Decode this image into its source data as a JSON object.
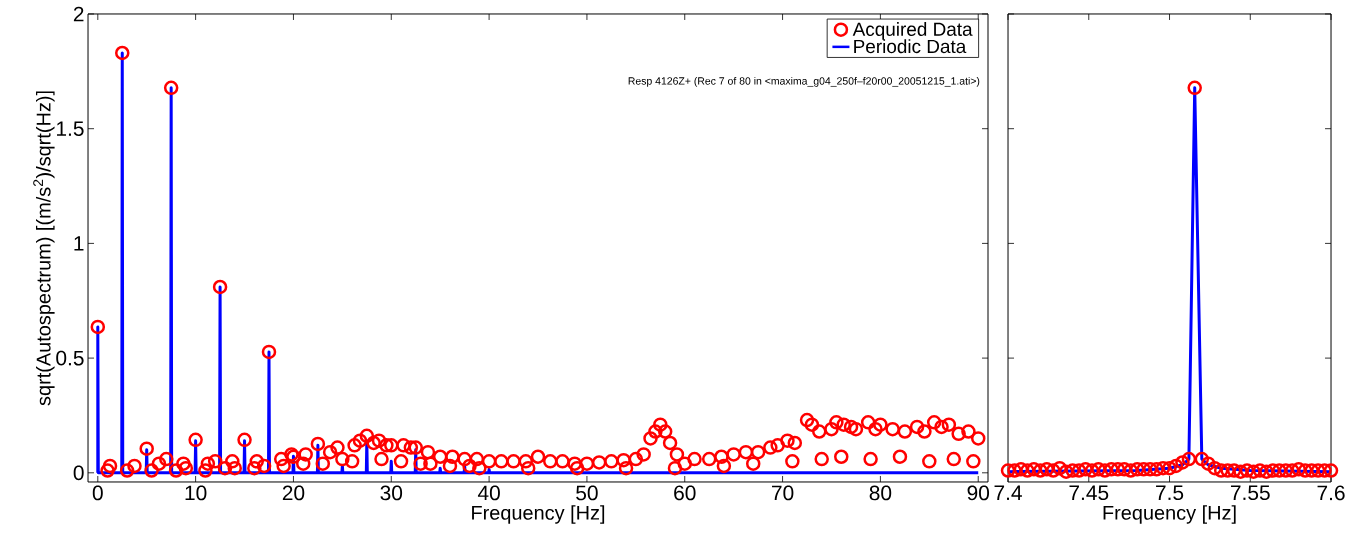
{
  "chart_data": [
    {
      "type": "scatter",
      "xlabel": "Frequency [Hz]",
      "ylabel": "sqrt(Autospectrum) [(m/s$^{2}$)/sqrt(Hz)]",
      "annotations": [
        "Resp 4126Z+ (Rec 7 of 80 in <maxima_g04_250f–f20r00_20051215_1.ati>)"
      ],
      "xlim": [
        -1,
        91
      ],
      "ylim": [
        -0.04,
        2
      ],
      "xticks": [
        0,
        10,
        20,
        30,
        40,
        50,
        60,
        70,
        80,
        90
      ],
      "yticks": [
        0,
        0.5,
        1,
        1.5,
        2
      ],
      "grid": false,
      "legend": "top right",
      "series": [
        {
          "name": "Acquired Data",
          "marker": "circle",
          "color": "#ff0000",
          "x": [
            0,
            2.5,
            5,
            7.5,
            10,
            12.5,
            15,
            17.5,
            20,
            22.5,
            25,
            27.5,
            30,
            32.5,
            35,
            37.5,
            40,
            1.25,
            3.75,
            6.25,
            7.0,
            8.75,
            11.25,
            12.0,
            13.75,
            16.25,
            18.75,
            19.8,
            21.25,
            23.75,
            24.5,
            26.25,
            26.8,
            28.2,
            28.75,
            29.5,
            31.25,
            32.0,
            33.75,
            36.25,
            38.75,
            41.25,
            42.5,
            43.75,
            45,
            46.25,
            47.5,
            48.75,
            50,
            51.25,
            52.5,
            53.75,
            55,
            55.8,
            56.5,
            57.0,
            57.5,
            58.0,
            58.5,
            59.2,
            60,
            61,
            62.5,
            63.75,
            65,
            66.25,
            67.5,
            68.75,
            69.5,
            70.5,
            71.25,
            72.5,
            73.0,
            73.75,
            75,
            75.5,
            76.25,
            77.0,
            77.5,
            78.75,
            79.5,
            80.0,
            81.25,
            82.5,
            83.75,
            84.5,
            85.5,
            86.25,
            87.0,
            88.0,
            89.0,
            90.0,
            1,
            3,
            5.5,
            8,
            9,
            11,
            13,
            14,
            16,
            17,
            19,
            21,
            23,
            26,
            29,
            31,
            33,
            34,
            36,
            38,
            39,
            44,
            49,
            54,
            59,
            64,
            67,
            71,
            74,
            76,
            79,
            82,
            85,
            87.5,
            89.5
          ],
          "values": [
            0.636,
            1.83,
            0.105,
            1.678,
            0.144,
            0.81,
            0.144,
            0.527,
            0.07,
            0.126,
            0.06,
            0.161,
            0.12,
            0.11,
            0.07,
            0.06,
            0.05,
            0.03,
            0.03,
            0.04,
            0.06,
            0.04,
            0.04,
            0.05,
            0.05,
            0.05,
            0.06,
            0.08,
            0.08,
            0.09,
            0.11,
            0.12,
            0.14,
            0.13,
            0.14,
            0.12,
            0.12,
            0.11,
            0.09,
            0.07,
            0.06,
            0.05,
            0.05,
            0.05,
            0.07,
            0.05,
            0.05,
            0.04,
            0.04,
            0.045,
            0.05,
            0.055,
            0.06,
            0.08,
            0.15,
            0.18,
            0.21,
            0.18,
            0.13,
            0.08,
            0.04,
            0.06,
            0.06,
            0.07,
            0.08,
            0.09,
            0.09,
            0.11,
            0.12,
            0.14,
            0.13,
            0.23,
            0.21,
            0.18,
            0.19,
            0.22,
            0.21,
            0.2,
            0.19,
            0.22,
            0.19,
            0.21,
            0.19,
            0.18,
            0.2,
            0.18,
            0.22,
            0.2,
            0.21,
            0.17,
            0.18,
            0.15,
            0.01,
            0.01,
            0.01,
            0.01,
            0.02,
            0.01,
            0.02,
            0.02,
            0.02,
            0.03,
            0.03,
            0.04,
            0.04,
            0.05,
            0.06,
            0.05,
            0.04,
            0.04,
            0.03,
            0.03,
            0.02,
            0.02,
            0.02,
            0.02,
            0.02,
            0.03,
            0.04,
            0.05,
            0.06,
            0.07,
            0.06,
            0.07,
            0.05,
            0.06,
            0.05
          ]
        },
        {
          "name": "Periodic Data",
          "type": "line",
          "marker": "none",
          "line_style": "solid",
          "color": "#0000ff",
          "x": [
            0,
            0,
            0.05,
            2.45,
            2.5,
            2.55,
            4.95,
            5,
            5.05,
            7.45,
            7.5,
            7.55,
            9.95,
            10,
            10.05,
            12.45,
            12.5,
            12.55,
            14.95,
            15,
            15.05,
            17.45,
            17.5,
            17.55,
            19.95,
            20,
            20.05,
            22.45,
            22.5,
            22.55,
            24.95,
            25,
            25.05,
            27.45,
            27.5,
            27.55,
            29.95,
            30,
            30.05,
            32.45,
            32.5,
            32.55,
            34.95,
            35,
            35.05,
            37.45,
            37.5,
            37.55,
            39.95,
            40,
            40.05,
            90
          ],
          "values": [
            0,
            0.636,
            0,
            0,
            1.83,
            0,
            0,
            0.1,
            0,
            0,
            1.678,
            0,
            0,
            0.14,
            0,
            0,
            0.81,
            0,
            0,
            0.14,
            0,
            0,
            0.527,
            0,
            0,
            0.072,
            0,
            0,
            0.12,
            0,
            0,
            0.03,
            0,
            0,
            0.14,
            0,
            0,
            0.05,
            0,
            0,
            0.1,
            0,
            0,
            0.02,
            0,
            0,
            0.03,
            0,
            0,
            0.015,
            0,
            0
          ]
        }
      ]
    },
    {
      "type": "scatter",
      "xlabel": "Frequency [Hz]",
      "xlim": [
        7.4,
        7.6
      ],
      "ylim": [
        -0.04,
        2
      ],
      "xticks": [
        7.4,
        7.45,
        7.5,
        7.55,
        7.6
      ],
      "yticks": [
        0,
        0.5,
        1,
        1.5,
        2
      ],
      "tick_labels": "x",
      "grid": false,
      "series": [
        {
          "marker": "circle",
          "color": "#ff0000",
          "x": [
            7.4,
            7.404,
            7.408,
            7.412,
            7.416,
            7.42,
            7.424,
            7.428,
            7.432,
            7.436,
            7.44,
            7.444,
            7.448,
            7.452,
            7.456,
            7.46,
            7.464,
            7.468,
            7.472,
            7.476,
            7.48,
            7.484,
            7.488,
            7.492,
            7.496,
            7.5,
            7.504,
            7.508,
            7.512,
            7.5156,
            7.52,
            7.524,
            7.528,
            7.532,
            7.536,
            7.54,
            7.544,
            7.548,
            7.552,
            7.556,
            7.56,
            7.564,
            7.568,
            7.572,
            7.576,
            7.58,
            7.584,
            7.588,
            7.592,
            7.596,
            7.6
          ],
          "values": [
            0.01,
            0.01,
            0.015,
            0.01,
            0.015,
            0.01,
            0.015,
            0.01,
            0.02,
            0.005,
            0.01,
            0.01,
            0.015,
            0.01,
            0.015,
            0.01,
            0.015,
            0.015,
            0.015,
            0.01,
            0.015,
            0.015,
            0.015,
            0.015,
            0.02,
            0.02,
            0.03,
            0.045,
            0.06,
            1.678,
            0.06,
            0.04,
            0.02,
            0.01,
            0.01,
            0.01,
            0.005,
            0.01,
            0.005,
            0.01,
            0.005,
            0.01,
            0.01,
            0.01,
            0.01,
            0.015,
            0.01,
            0.01,
            0.01,
            0.01,
            0.01
          ]
        },
        {
          "type": "line",
          "marker": "none",
          "line_style": "solid",
          "color": "#0000ff",
          "x": [
            7.4,
            7.48,
            7.5,
            7.508,
            7.512,
            7.5156,
            7.52,
            7.524,
            7.532,
            7.55,
            7.6
          ],
          "values": [
            0.005,
            0.01,
            0.02,
            0.035,
            0.06,
            1.678,
            0.06,
            0.035,
            0.02,
            0.01,
            0.005
          ]
        }
      ]
    }
  ]
}
